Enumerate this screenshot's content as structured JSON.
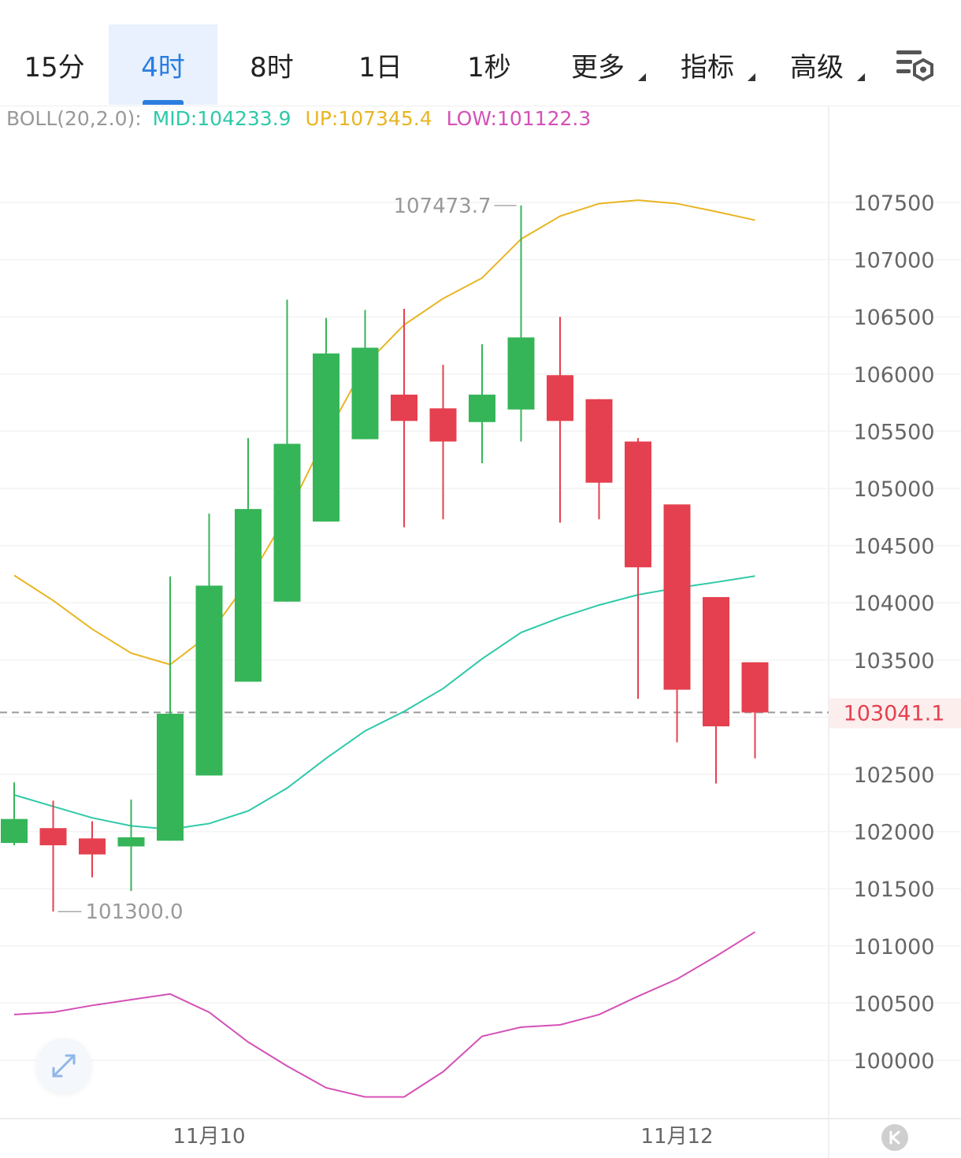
{
  "tabs": [
    {
      "label": "15分",
      "active": false,
      "dropdown": false
    },
    {
      "label": "4时",
      "active": true,
      "dropdown": false
    },
    {
      "label": "8时",
      "active": false,
      "dropdown": false
    },
    {
      "label": "1日",
      "active": false,
      "dropdown": false
    },
    {
      "label": "1秒",
      "active": false,
      "dropdown": false
    },
    {
      "label": "更多",
      "active": false,
      "dropdown": true
    },
    {
      "label": "指标",
      "active": false,
      "dropdown": true
    },
    {
      "label": "高级",
      "active": false,
      "dropdown": true
    }
  ],
  "settings_icon": "chart-settings-icon",
  "expand_icon": "expand-arrows-icon",
  "logo_icon": "k-logo-icon",
  "boll": {
    "name": "BOLL(20,2.0):",
    "mid": "MID:104233.9",
    "up": "UP:107345.4",
    "low": "LOW:101122.3"
  },
  "colors": {
    "up_candle": "#35b558",
    "down_candle": "#e5404f",
    "mid_line": "#2ec9a8",
    "up_line": "#e8b523",
    "low_line": "#d451b7",
    "active_tab": "#2b7de0",
    "price_label": "#e5404f"
  },
  "chart_data": {
    "type": "candlestick",
    "ylim": [
      99500,
      108200
    ],
    "y_ticks": [
      100000,
      100500,
      101000,
      101500,
      102000,
      102500,
      103000,
      103500,
      104000,
      104500,
      105000,
      105500,
      106000,
      106500,
      107000,
      107500
    ],
    "y_tick_labels": [
      "100000",
      "100500",
      "101000",
      "101500",
      "102000",
      "102500",
      "",
      "103500",
      "104000",
      "104500",
      "105000",
      "105500",
      "106000",
      "106500",
      "107000",
      "107500"
    ],
    "current_price": 103041.1,
    "current_price_label": "103041.1",
    "high_marker": {
      "index": 13,
      "value": 107473.7,
      "label": "107473.7"
    },
    "low_marker": {
      "index": 1,
      "value": 101300.0,
      "label": "101300.0"
    },
    "x_labels": [
      {
        "index": 5,
        "label": "11月10"
      },
      {
        "index": 17,
        "label": "11月12"
      }
    ],
    "candles": [
      {
        "o": 101900,
        "h": 102430,
        "l": 101880,
        "c": 102110
      },
      {
        "o": 102030,
        "h": 102270,
        "l": 101300,
        "c": 101880
      },
      {
        "o": 101940,
        "h": 102090,
        "l": 101600,
        "c": 101800
      },
      {
        "o": 101870,
        "h": 102280,
        "l": 101480,
        "c": 101950
      },
      {
        "o": 101920,
        "h": 104230,
        "l": 101920,
        "c": 103030
      },
      {
        "o": 102490,
        "h": 104780,
        "l": 102490,
        "c": 104150
      },
      {
        "o": 103310,
        "h": 105440,
        "l": 103310,
        "c": 104820
      },
      {
        "o": 104010,
        "h": 106650,
        "l": 104010,
        "c": 105390
      },
      {
        "o": 104710,
        "h": 106490,
        "l": 104710,
        "c": 106180
      },
      {
        "o": 105430,
        "h": 106560,
        "l": 105430,
        "c": 106230
      },
      {
        "o": 105820,
        "h": 106570,
        "l": 104660,
        "c": 105590
      },
      {
        "o": 105700,
        "h": 106080,
        "l": 104730,
        "c": 105410
      },
      {
        "o": 105580,
        "h": 106260,
        "l": 105220,
        "c": 105820
      },
      {
        "o": 105690,
        "h": 107473.7,
        "l": 105410,
        "c": 106320
      },
      {
        "o": 105990,
        "h": 106500,
        "l": 104700,
        "c": 105590
      },
      {
        "o": 105780,
        "h": 105780,
        "l": 104730,
        "c": 105050
      },
      {
        "o": 105410,
        "h": 105440,
        "l": 103160,
        "c": 104310
      },
      {
        "o": 104860,
        "h": 104860,
        "l": 102780,
        "c": 103240
      },
      {
        "o": 104050,
        "h": 104050,
        "l": 102420,
        "c": 102920
      },
      {
        "o": 103480,
        "h": 103480,
        "l": 102640,
        "c": 103041.1
      }
    ],
    "series": [
      {
        "name": "UP",
        "values": [
          104240,
          104020,
          103770,
          103560,
          103460,
          103720,
          104190,
          104770,
          105460,
          106080,
          106430,
          106660,
          106840,
          107180,
          107380,
          107490,
          107520,
          107490,
          107420,
          107345.4
        ]
      },
      {
        "name": "MID",
        "values": [
          102320,
          102220,
          102120,
          102050,
          102020,
          102070,
          102180,
          102380,
          102640,
          102880,
          103050,
          103250,
          103510,
          103740,
          103870,
          103980,
          104070,
          104130,
          104180,
          104233.9
        ]
      },
      {
        "name": "LOW",
        "values": [
          100400,
          100420,
          100480,
          100530,
          100580,
          100420,
          100160,
          99950,
          99760,
          99680,
          99680,
          99900,
          100210,
          100290,
          100310,
          100400,
          100560,
          100710,
          100910,
          101122.3
        ]
      }
    ]
  }
}
